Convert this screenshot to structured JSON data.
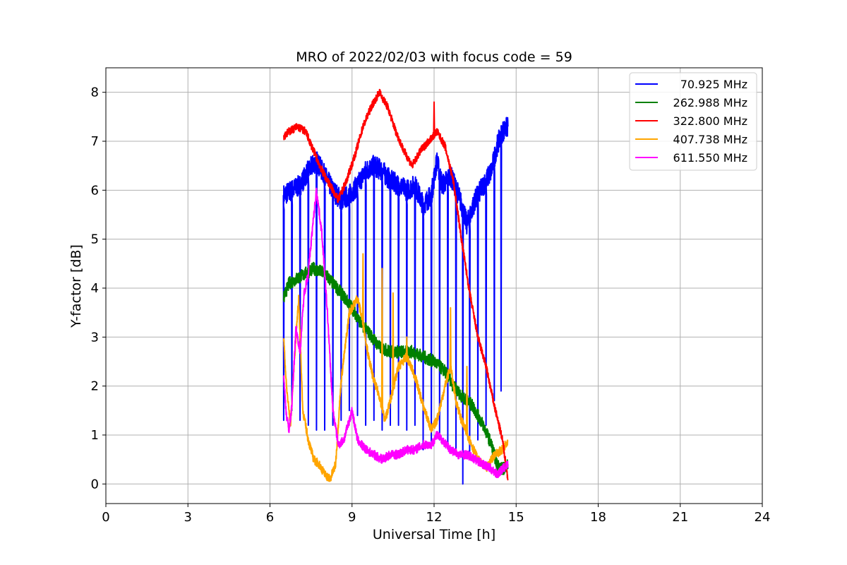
{
  "chart_data": {
    "type": "line",
    "title": "MRO of 2022/02/03 with focus code = 59",
    "xlabel": "Universal Time [h]",
    "ylabel": "Y-factor [dB]",
    "xlim": [
      0,
      24
    ],
    "ylim": [
      -0.4,
      8.5
    ],
    "xticks": [
      "0",
      "3",
      "6",
      "9",
      "12",
      "15",
      "18",
      "21",
      "24"
    ],
    "yticks": [
      "0",
      "1",
      "2",
      "3",
      "4",
      "5",
      "6",
      "7",
      "8"
    ],
    "grid": true,
    "legend_position": "top-right",
    "series": [
      {
        "name": "70.925 MHz",
        "color": "#0000ff",
        "baseline": [
          [
            6.5,
            5.9
          ],
          [
            6.8,
            6.0
          ],
          [
            7.1,
            6.1
          ],
          [
            7.4,
            6.4
          ],
          [
            7.7,
            6.6
          ],
          [
            8.0,
            6.3
          ],
          [
            8.3,
            6.0
          ],
          [
            8.6,
            5.8
          ],
          [
            8.9,
            5.9
          ],
          [
            9.2,
            6.1
          ],
          [
            9.5,
            6.4
          ],
          [
            9.8,
            6.5
          ],
          [
            10.1,
            6.4
          ],
          [
            10.4,
            6.2
          ],
          [
            10.7,
            6.1
          ],
          [
            11.0,
            6.0
          ],
          [
            11.3,
            6.1
          ],
          [
            11.6,
            5.7
          ],
          [
            11.9,
            5.9
          ],
          [
            12.1,
            6.6
          ],
          [
            12.3,
            6.1
          ],
          [
            12.6,
            6.3
          ],
          [
            12.9,
            5.9
          ],
          [
            13.2,
            5.3
          ],
          [
            13.5,
            5.8
          ],
          [
            13.8,
            6.1
          ],
          [
            14.1,
            6.4
          ],
          [
            14.3,
            6.9
          ],
          [
            14.5,
            7.2
          ],
          [
            14.7,
            7.3
          ]
        ],
        "dips": [
          [
            6.5,
            1.3
          ],
          [
            6.8,
            1.5
          ],
          [
            7.1,
            1.3
          ],
          [
            7.4,
            1.2
          ],
          [
            7.7,
            1.1
          ],
          [
            8.0,
            1.1
          ],
          [
            8.3,
            1.2
          ],
          [
            8.6,
            1.3
          ],
          [
            8.9,
            1.5
          ],
          [
            9.2,
            1.4
          ],
          [
            9.5,
            1.2
          ],
          [
            9.8,
            1.3
          ],
          [
            10.1,
            1.1
          ],
          [
            10.4,
            1.2
          ],
          [
            10.7,
            1.2
          ],
          [
            11.0,
            1.1
          ],
          [
            11.3,
            1.2
          ],
          [
            11.6,
            0.7
          ],
          [
            11.9,
            0.8
          ],
          [
            12.2,
            0.9
          ],
          [
            12.5,
            0.8
          ],
          [
            12.8,
            0.6
          ],
          [
            13.05,
            0.0
          ],
          [
            13.3,
            0.5
          ],
          [
            13.6,
            0.9
          ],
          [
            13.9,
            1.2
          ],
          [
            14.2,
            1.7
          ],
          [
            14.45,
            1.9
          ]
        ]
      },
      {
        "name": "262.988 MHz",
        "color": "#008000",
        "points": [
          [
            6.5,
            3.8
          ],
          [
            6.7,
            4.1
          ],
          [
            7.0,
            4.2
          ],
          [
            7.3,
            4.3
          ],
          [
            7.6,
            4.4
          ],
          [
            8.0,
            4.3
          ],
          [
            8.3,
            4.1
          ],
          [
            8.6,
            3.9
          ],
          [
            9.0,
            3.6
          ],
          [
            9.3,
            3.3
          ],
          [
            9.6,
            3.1
          ],
          [
            10.0,
            2.8
          ],
          [
            10.4,
            2.7
          ],
          [
            10.8,
            2.7
          ],
          [
            11.2,
            2.7
          ],
          [
            11.6,
            2.6
          ],
          [
            12.0,
            2.5
          ],
          [
            12.4,
            2.3
          ],
          [
            12.7,
            2.0
          ],
          [
            13.0,
            1.8
          ],
          [
            13.4,
            1.6
          ],
          [
            13.8,
            1.2
          ],
          [
            14.1,
            0.8
          ],
          [
            14.3,
            0.4
          ],
          [
            14.5,
            0.3
          ],
          [
            14.7,
            0.4
          ]
        ]
      },
      {
        "name": "322.800 MHz",
        "color": "#ff0000",
        "points": [
          [
            6.5,
            7.1
          ],
          [
            6.7,
            7.2
          ],
          [
            7.0,
            7.3
          ],
          [
            7.3,
            7.2
          ],
          [
            7.6,
            6.8
          ],
          [
            7.9,
            6.4
          ],
          [
            8.2,
            6.1
          ],
          [
            8.5,
            5.8
          ],
          [
            8.8,
            6.2
          ],
          [
            9.1,
            6.7
          ],
          [
            9.4,
            7.3
          ],
          [
            9.7,
            7.7
          ],
          [
            10.0,
            8.0
          ],
          [
            10.3,
            7.7
          ],
          [
            10.6,
            7.2
          ],
          [
            10.9,
            6.8
          ],
          [
            11.2,
            6.5
          ],
          [
            11.5,
            6.8
          ],
          [
            11.8,
            7.0
          ],
          [
            12.1,
            7.2
          ],
          [
            12.4,
            6.9
          ],
          [
            12.7,
            6.2
          ],
          [
            13.0,
            5.0
          ],
          [
            13.3,
            3.9
          ],
          [
            13.6,
            3.0
          ],
          [
            13.9,
            2.4
          ],
          [
            14.2,
            1.6
          ],
          [
            14.5,
            0.9
          ],
          [
            14.7,
            0.1
          ]
        ],
        "spike": [
          12.0,
          7.8
        ]
      },
      {
        "name": "407.738 MHz",
        "color": "#ffa500",
        "points": [
          [
            6.5,
            3.0
          ],
          [
            6.6,
            2.0
          ],
          [
            6.75,
            1.2
          ],
          [
            6.9,
            2.6
          ],
          [
            7.05,
            3.8
          ],
          [
            7.2,
            1.5
          ],
          [
            7.4,
            0.9
          ],
          [
            7.6,
            0.5
          ],
          [
            7.8,
            0.4
          ],
          [
            8.0,
            0.2
          ],
          [
            8.2,
            0.1
          ],
          [
            8.4,
            0.4
          ],
          [
            8.6,
            2.1
          ],
          [
            8.9,
            3.5
          ],
          [
            9.2,
            3.8
          ],
          [
            9.4,
            3.3
          ],
          [
            9.6,
            2.6
          ],
          [
            9.8,
            2.1
          ],
          [
            10.0,
            1.8
          ],
          [
            10.2,
            1.3
          ],
          [
            10.4,
            1.7
          ],
          [
            10.7,
            2.4
          ],
          [
            11.0,
            2.6
          ],
          [
            11.3,
            2.2
          ],
          [
            11.6,
            1.6
          ],
          [
            11.9,
            1.1
          ],
          [
            12.1,
            1.3
          ],
          [
            12.4,
            2.0
          ],
          [
            12.6,
            2.4
          ],
          [
            12.8,
            1.7
          ],
          [
            13.0,
            1.3
          ],
          [
            13.3,
            0.9
          ],
          [
            13.6,
            0.5
          ],
          [
            13.9,
            0.3
          ],
          [
            14.2,
            0.6
          ],
          [
            14.5,
            0.7
          ],
          [
            14.7,
            0.9
          ]
        ],
        "spikes": [
          [
            9.4,
            4.7
          ],
          [
            10.1,
            4.4
          ],
          [
            10.5,
            3.9
          ],
          [
            12.6,
            3.6
          ],
          [
            13.2,
            2.4
          ],
          [
            11.0,
            3.0
          ]
        ]
      },
      {
        "name": "611.550 MHz",
        "color": "#ff00ff",
        "points": [
          [
            6.5,
            2.2
          ],
          [
            6.6,
            1.4
          ],
          [
            6.7,
            1.1
          ],
          [
            6.8,
            1.6
          ],
          [
            6.95,
            3.2
          ],
          [
            7.1,
            2.7
          ],
          [
            7.25,
            3.9
          ],
          [
            7.4,
            4.3
          ],
          [
            7.55,
            5.2
          ],
          [
            7.7,
            6.0
          ],
          [
            7.9,
            5.1
          ],
          [
            8.1,
            3.5
          ],
          [
            8.3,
            1.5
          ],
          [
            8.5,
            0.8
          ],
          [
            8.7,
            0.9
          ],
          [
            8.9,
            1.3
          ],
          [
            9.0,
            1.5
          ],
          [
            9.2,
            0.9
          ],
          [
            9.5,
            0.7
          ],
          [
            9.8,
            0.6
          ],
          [
            10.1,
            0.5
          ],
          [
            10.4,
            0.6
          ],
          [
            10.7,
            0.6
          ],
          [
            11.0,
            0.7
          ],
          [
            11.3,
            0.7
          ],
          [
            11.6,
            0.8
          ],
          [
            11.9,
            0.8
          ],
          [
            12.1,
            1.0
          ],
          [
            12.3,
            0.9
          ],
          [
            12.6,
            0.7
          ],
          [
            12.9,
            0.6
          ],
          [
            13.2,
            0.6
          ],
          [
            13.5,
            0.5
          ],
          [
            13.8,
            0.4
          ],
          [
            14.1,
            0.3
          ],
          [
            14.3,
            0.2
          ],
          [
            14.5,
            0.3
          ],
          [
            14.7,
            0.4
          ]
        ]
      }
    ]
  }
}
